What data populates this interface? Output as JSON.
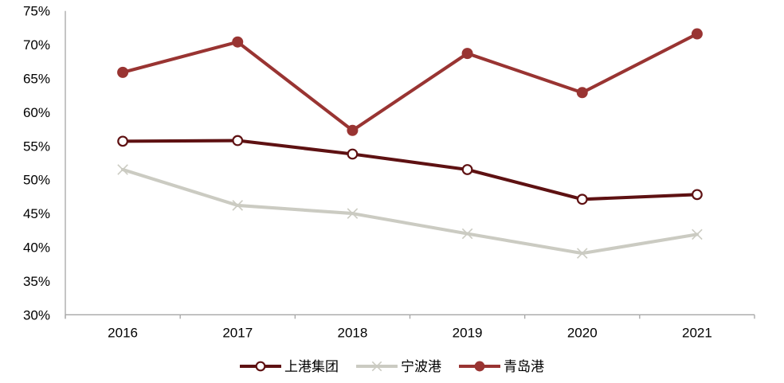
{
  "chart_data": {
    "type": "line",
    "categories": [
      "2016",
      "2017",
      "2018",
      "2019",
      "2020",
      "2021"
    ],
    "series": [
      {
        "name": "上港集团",
        "color": "#5E1112",
        "marker": "open-circle",
        "values": [
          55.7,
          55.8,
          53.8,
          51.5,
          47.1,
          47.8
        ]
      },
      {
        "name": "宁波港",
        "color": "#CBCBC2",
        "marker": "x",
        "values": [
          51.5,
          46.2,
          45.0,
          42.0,
          39.1,
          41.9
        ]
      },
      {
        "name": "青岛港",
        "color": "#993432",
        "marker": "filled-circle",
        "values": [
          65.9,
          70.4,
          57.3,
          68.7,
          62.9,
          71.6
        ]
      }
    ],
    "title": "",
    "xlabel": "",
    "ylabel": "",
    "ylim": [
      30,
      75
    ],
    "ytick_step": 5,
    "yticks": [
      "30%",
      "35%",
      "40%",
      "45%",
      "50%",
      "55%",
      "60%",
      "65%",
      "70%",
      "75%"
    ],
    "grid": false,
    "legend_position": "bottom",
    "axis_color": "#A6A6A6",
    "label_color": "#000000"
  }
}
